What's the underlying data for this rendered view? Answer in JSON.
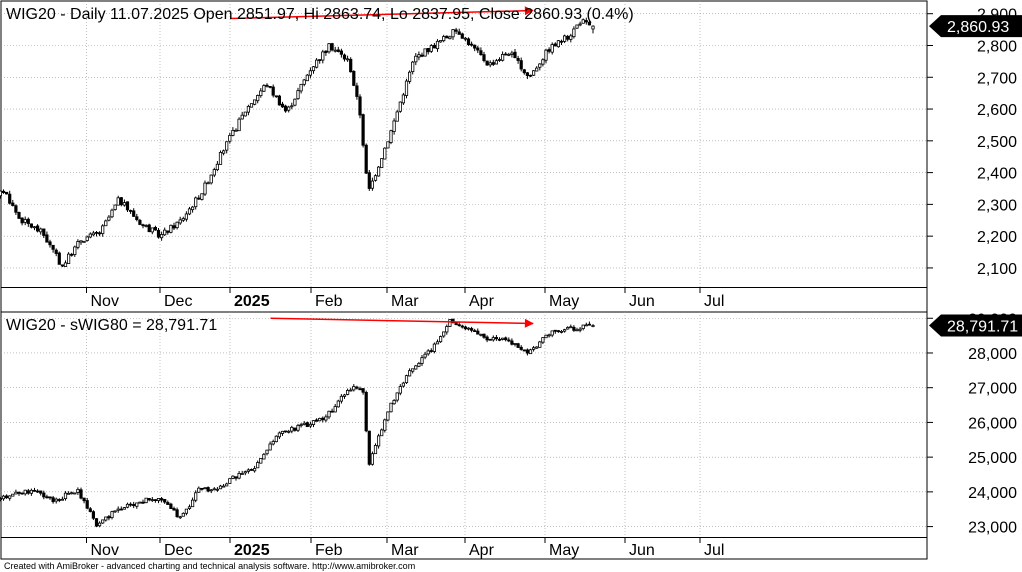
{
  "colors": {
    "candle_up": "#ffffff",
    "candle_down": "#000000",
    "grid": "#9a9a9a",
    "trendline": "#ff0000",
    "label_bg": "#000000",
    "label_text": "#ffffff"
  },
  "months": [
    "Nov",
    "Dec",
    "2025",
    "Feb",
    "Mar",
    "Apr",
    "May",
    "Jun",
    "Jul"
  ],
  "footer": "Created with AmiBroker - advanced charting and technical analysis software. http://www.amibroker.com",
  "chart_data": [
    {
      "type": "candlestick",
      "title": "WIG20 - Daily 11.07.2025 Open 2851.97, Hi 2863.74, Lo 2837.95, Close 2860.93 (0.4%)",
      "last_value_label": "2,860.93",
      "last_value": 2860.93,
      "ylim": [
        2040,
        2940
      ],
      "y_ticks": [
        2100,
        2200,
        2300,
        2400,
        2500,
        2600,
        2700,
        2800,
        2900
      ],
      "y_tick_labels": [
        "2,100",
        "2,200",
        "2,300",
        "2,400",
        "2,500",
        "2,600",
        "2,700",
        "2,800",
        "2,900"
      ],
      "grid": true,
      "trendline": {
        "from": [
          2,
          2885
        ],
        "to": [
          5.85,
          2910
        ]
      },
      "month_ticks": [
        0.02,
        1,
        2,
        3,
        4,
        5,
        6,
        7,
        8
      ],
      "anchors": [
        [
          -1.3,
          2290
        ],
        [
          -1.05,
          2345
        ],
        [
          -0.85,
          2255
        ],
        [
          -0.55,
          2210
        ],
        [
          -0.3,
          2105
        ],
        [
          -0.05,
          2190
        ],
        [
          0.2,
          2210
        ],
        [
          0.45,
          2315
        ],
        [
          0.75,
          2240
        ],
        [
          1.0,
          2200
        ],
        [
          1.3,
          2250
        ],
        [
          1.6,
          2340
        ],
        [
          1.9,
          2470
        ],
        [
          2.2,
          2600
        ],
        [
          2.45,
          2680
        ],
        [
          2.7,
          2590
        ],
        [
          3.0,
          2730
        ],
        [
          3.25,
          2800
        ],
        [
          3.5,
          2750
        ],
        [
          3.65,
          2580
        ],
        [
          3.75,
          2335
        ],
        [
          4.05,
          2530
        ],
        [
          4.35,
          2760
        ],
        [
          4.6,
          2800
        ],
        [
          4.9,
          2850
        ],
        [
          5.15,
          2780
        ],
        [
          5.3,
          2740
        ],
        [
          5.55,
          2780
        ],
        [
          5.8,
          2700
        ],
        [
          6.05,
          2790
        ],
        [
          6.3,
          2830
        ],
        [
          6.45,
          2880
        ],
        [
          6.55,
          2860
        ]
      ],
      "end": {
        "x": 6.6,
        "open": 2851.97,
        "high": 2863.74,
        "low": 2837.95,
        "close": 2860.93
      }
    },
    {
      "type": "candlestick",
      "title": "WIG20 - sWIG80 = 28,791.71",
      "last_value_label": "28,791.71",
      "last_value": 28791.71,
      "ylim": [
        22700,
        29180
      ],
      "y_ticks": [
        23000,
        24000,
        25000,
        26000,
        27000,
        28000,
        29000
      ],
      "y_tick_labels": [
        "23,000",
        "24,000",
        "25,000",
        "26,000",
        "27,000",
        "28,000",
        "29,000"
      ],
      "grid": true,
      "trendline": {
        "from": [
          2.5,
          29000
        ],
        "to": [
          5.85,
          28850
        ]
      },
      "month_ticks": [
        0.02,
        1,
        2,
        3,
        4,
        5,
        6,
        7,
        8
      ],
      "anchors": [
        [
          -1.3,
          23800
        ],
        [
          -1.0,
          23900
        ],
        [
          -0.7,
          24050
        ],
        [
          -0.4,
          23750
        ],
        [
          -0.1,
          24050
        ],
        [
          0.15,
          23050
        ],
        [
          0.4,
          23450
        ],
        [
          0.7,
          23700
        ],
        [
          1.0,
          23850
        ],
        [
          1.3,
          23200
        ],
        [
          1.55,
          24100
        ],
        [
          1.8,
          24050
        ],
        [
          2.1,
          24500
        ],
        [
          2.3,
          24650
        ],
        [
          2.6,
          25700
        ],
        [
          2.9,
          25900
        ],
        [
          3.2,
          26150
        ],
        [
          3.5,
          27000
        ],
        [
          3.7,
          26900
        ],
        [
          3.75,
          24700
        ],
        [
          4.0,
          26300
        ],
        [
          4.3,
          27500
        ],
        [
          4.6,
          28200
        ],
        [
          4.8,
          28950
        ],
        [
          5.05,
          28700
        ],
        [
          5.3,
          28400
        ],
        [
          5.55,
          28350
        ],
        [
          5.8,
          28000
        ],
        [
          6.05,
          28550
        ],
        [
          6.3,
          28700
        ],
        [
          6.55,
          28790
        ]
      ],
      "end": {
        "x": 6.6,
        "open": 28760,
        "high": 28830,
        "low": 28740,
        "close": 28791.71
      }
    }
  ]
}
